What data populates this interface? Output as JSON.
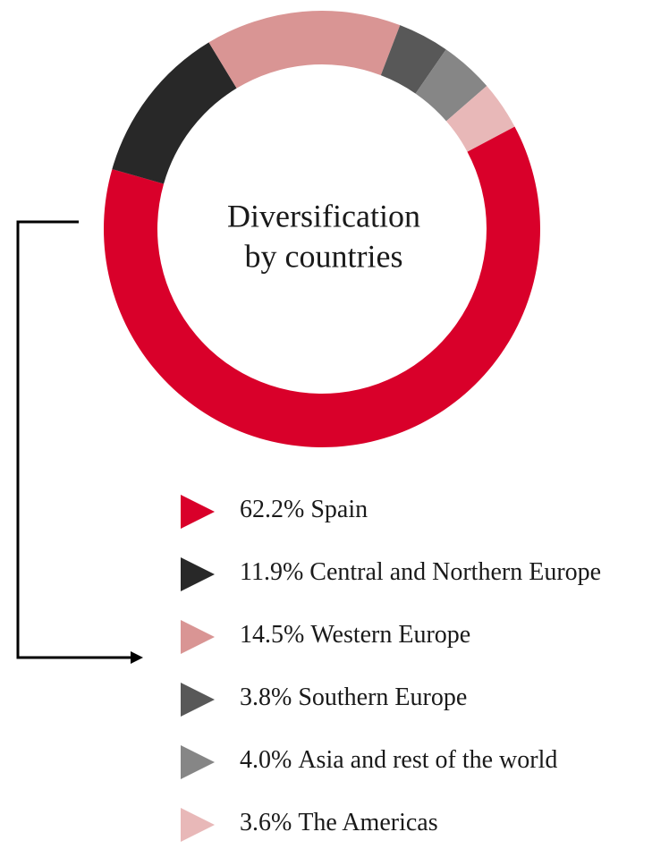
{
  "chart_data": {
    "type": "donut",
    "title": [
      "Diversification",
      "by countries"
    ],
    "categories": [
      "Spain",
      "Central and Northern Europe",
      "Western Europe",
      "Southern Europe",
      "Asia and rest of the world",
      "The Americas"
    ],
    "values": [
      62.2,
      11.9,
      14.5,
      3.8,
      4.0,
      3.6
    ],
    "value_labels": [
      "62.2%",
      "11.9%",
      "14.5%",
      "3.8%",
      "4.0%",
      "3.6%"
    ],
    "colors": [
      "#d9002a",
      "#282828",
      "#d99594",
      "#585858",
      "#868686",
      "#e8b8b8"
    ]
  }
}
